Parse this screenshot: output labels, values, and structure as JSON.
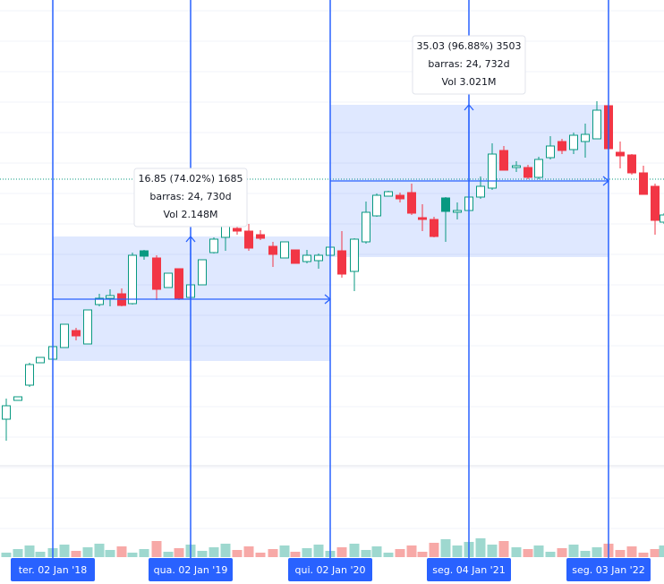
{
  "time_axis": {
    "labels": [
      "ter. 02 Jan '18",
      "qua. 02 Jan '19",
      "qui. 02 Jan '20",
      "seg. 04 Jan '21",
      "seg. 03 Jan '22"
    ]
  },
  "measurements": [
    {
      "change": "16.85 (74.02%) 1685",
      "bars": "barras: 24, 730d",
      "volume": "Vol 2.148M"
    },
    {
      "change": "35.03 (96.88%) 3503",
      "bars": "barras: 24, 732d",
      "volume": "Vol 3.021M"
    }
  ]
}
